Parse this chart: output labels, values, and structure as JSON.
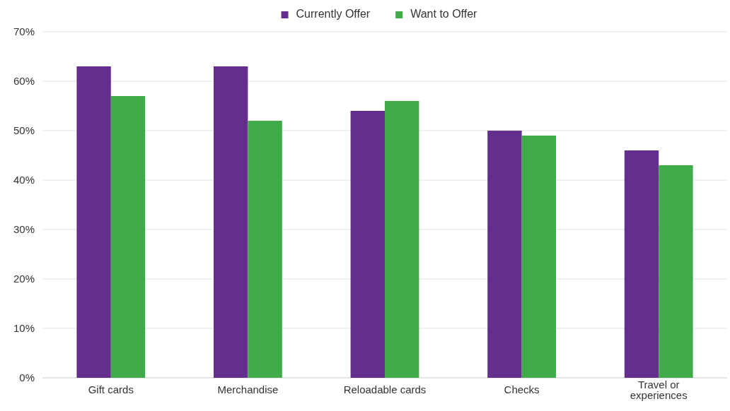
{
  "chart_data": {
    "type": "bar",
    "categories": [
      "Gift cards",
      "Merchandise",
      "Reloadable cards",
      "Checks",
      "Travel or experiences"
    ],
    "series": [
      {
        "name": "Currently Offer",
        "color": "#652d8e",
        "values": [
          63,
          63,
          54,
          50,
          46
        ]
      },
      {
        "name": "Want to Offer",
        "color": "#3fab49",
        "values": [
          57,
          52,
          56,
          49,
          43
        ]
      }
    ],
    "ylim": [
      0,
      70
    ],
    "yticks": [
      {
        "value": 0,
        "label": "0%"
      },
      {
        "value": 10,
        "label": "10%"
      },
      {
        "value": 20,
        "label": "20%"
      },
      {
        "value": 30,
        "label": "30%"
      },
      {
        "value": 40,
        "label": "40%"
      },
      {
        "value": 50,
        "label": "50%"
      },
      {
        "value": 60,
        "label": "60%"
      },
      {
        "value": 70,
        "label": "70%"
      }
    ],
    "grid": "y",
    "legend": "top"
  }
}
